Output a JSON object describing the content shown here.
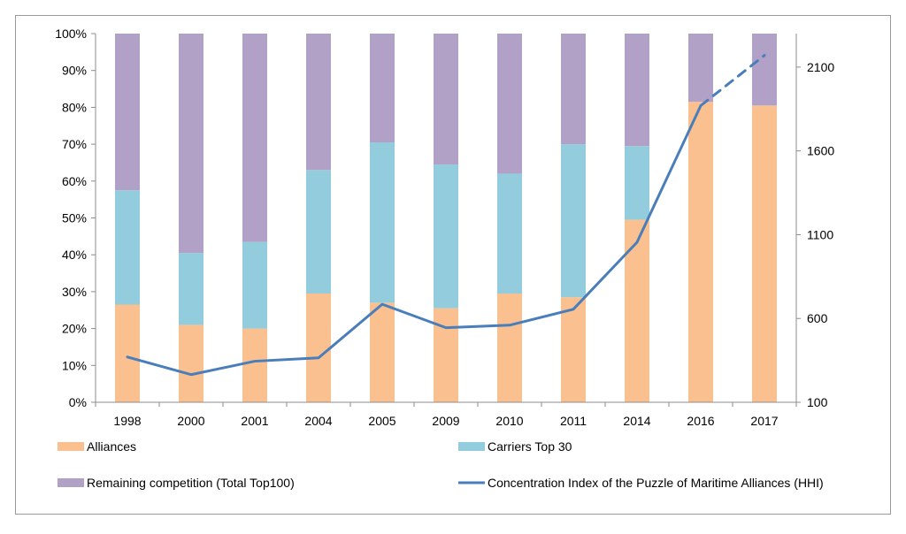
{
  "chart_data": {
    "type": "bar",
    "stacked": true,
    "categories": [
      "1998",
      "2000",
      "2001",
      "2004",
      "2005",
      "2009",
      "2010",
      "2011",
      "2014",
      "2016",
      "2017"
    ],
    "series": [
      {
        "name": "Alliances",
        "axis": "left",
        "color": "#FAC090",
        "values": [
          26.5,
          21,
          20,
          29.5,
          27,
          25.5,
          29.5,
          28.5,
          49.5,
          81.5,
          80.5
        ]
      },
      {
        "name": "Carriers Top 30",
        "axis": "left",
        "color": "#93CDDD",
        "values": [
          31,
          19.5,
          23.5,
          33.5,
          43.5,
          39,
          32.5,
          41.5,
          20,
          0,
          0
        ]
      },
      {
        "name": "Remaining competition (Total Top100)",
        "axis": "left",
        "color": "#B2A1C7",
        "values": [
          42.5,
          59.5,
          56.5,
          37,
          29.5,
          35.5,
          38,
          30,
          30.5,
          18.5,
          19.5
        ]
      }
    ],
    "line_series": {
      "name": "Concentration Index of the Puzzle of Maritime Alliances (HHI)",
      "axis": "right",
      "color": "#4A7EBB",
      "values": [
        370,
        265,
        345,
        365,
        685,
        545,
        560,
        655,
        1055,
        1870,
        2170
      ],
      "dashed_from_index": 9
    },
    "y_left": {
      "min": 0,
      "max": 100,
      "step": 10,
      "tick_labels": [
        "0%",
        "10%",
        "20%",
        "30%",
        "40%",
        "50%",
        "60%",
        "70%",
        "80%",
        "90%",
        "100%"
      ]
    },
    "y_right": {
      "min": 100,
      "max": 2300,
      "ticks": [
        100,
        600,
        1100,
        1600,
        2100
      ],
      "tick_labels": [
        "100",
        "600",
        "1100",
        "1600",
        "2100"
      ]
    },
    "legend": {
      "position": "bottom",
      "items": [
        {
          "label": "Alliances",
          "kind": "swatch",
          "color": "#FAC090"
        },
        {
          "label": "Carriers Top 30",
          "kind": "swatch",
          "color": "#93CDDD"
        },
        {
          "label": "Remaining competition (Total Top100)",
          "kind": "swatch",
          "color": "#B2A1C7"
        },
        {
          "label": "Concentration Index of the Puzzle of Maritime Alliances (HHI)",
          "kind": "line",
          "color": "#4A7EBB"
        }
      ]
    },
    "grid": false,
    "title": ""
  }
}
